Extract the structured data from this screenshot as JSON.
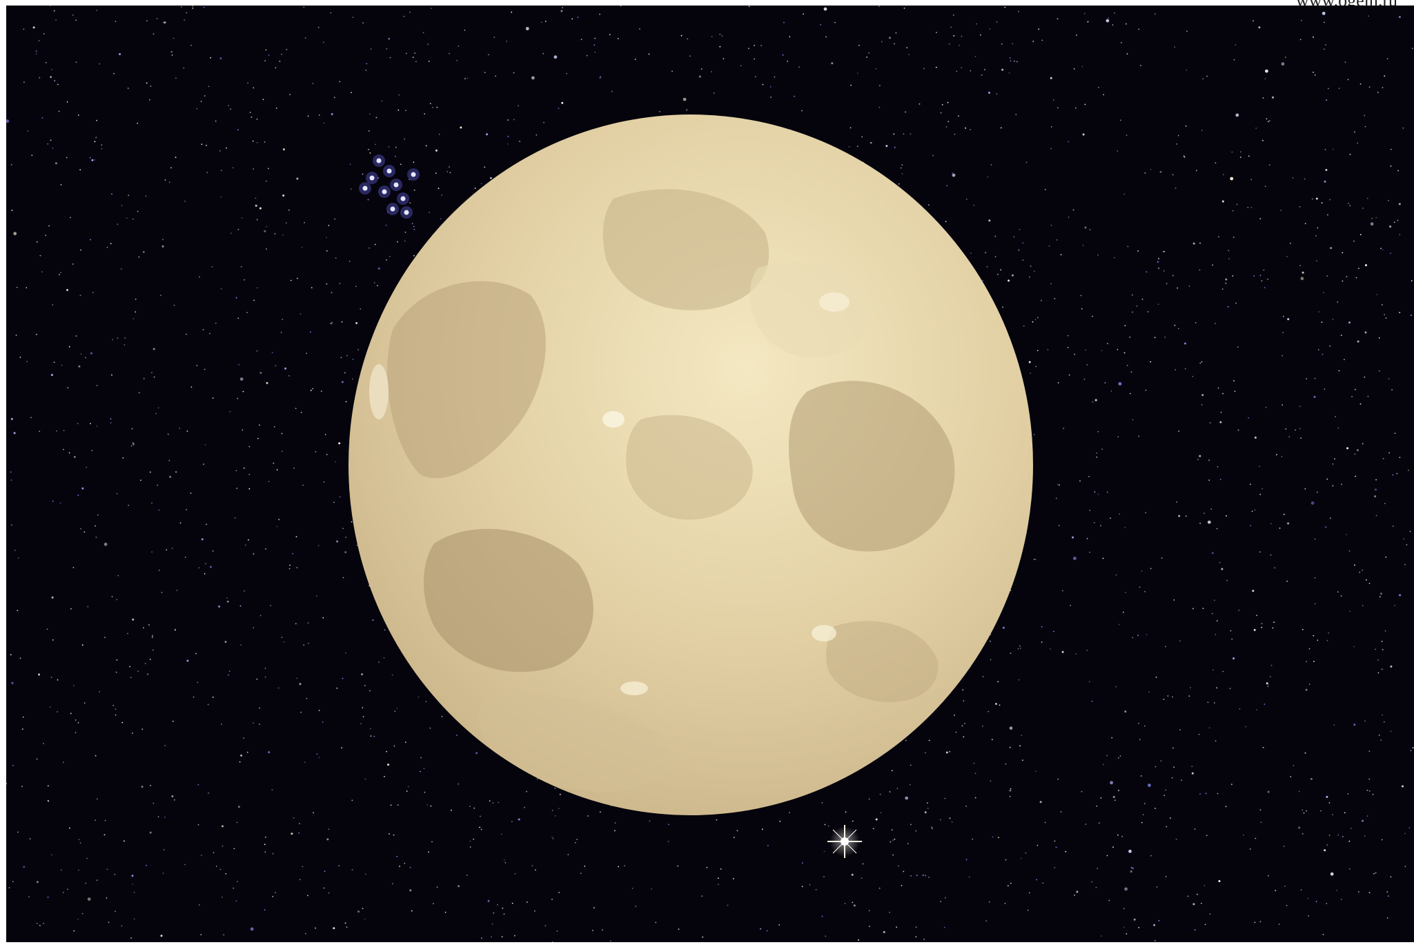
{
  "watermark": "www.ogeln.ru",
  "colors": {
    "sky": "#05040c",
    "moon_light": "#f2e4ba",
    "moon_mid": "#dcc89b",
    "moon_dark": "#b59e76",
    "star_blue": "#8f8cff",
    "star_white": "#ffffff"
  },
  "icons": [
    "moon-icon",
    "star-icon",
    "star-cluster-icon"
  ]
}
